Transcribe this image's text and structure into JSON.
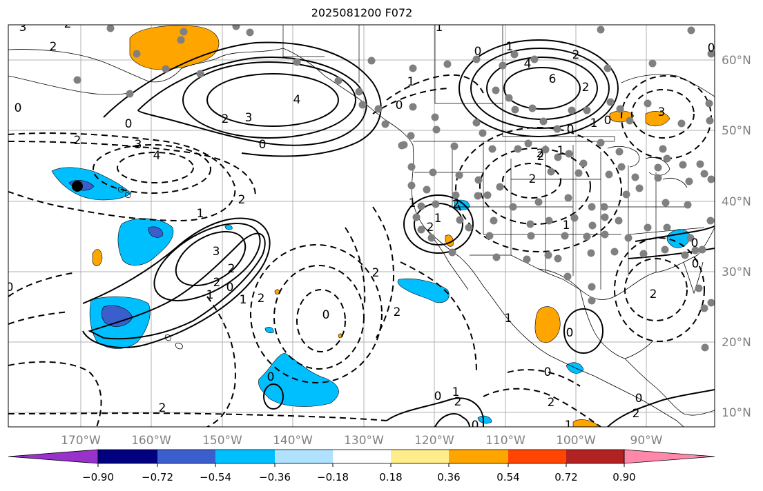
{
  "title": "2025081200 F072",
  "lon_ticks": [
    "170°W",
    "160°W",
    "150°W",
    "140°W",
    "130°W",
    "120°W",
    "110°W",
    "100°W",
    "90°W"
  ],
  "lat_ticks": [
    "60°N",
    "50°N",
    "40°N",
    "30°N",
    "20°N",
    "10°N"
  ],
  "colorbar": {
    "ticks": [
      "−0.90",
      "−0.72",
      "−0.54",
      "−0.36",
      "−0.18",
      "0.18",
      "0.36",
      "0.54",
      "0.72",
      "0.90"
    ],
    "colors": [
      "#9932cc",
      "#000080",
      "#3a5fcd",
      "#00bfff",
      "#b0e2ff",
      "#ffffff",
      "#ffec8b",
      "#ffa500",
      "#ff4500",
      "#b22222",
      "#ff88aa"
    ]
  },
  "contour_labels": [
    {
      "text": "3"
    },
    {
      "text": "2"
    },
    {
      "text": "2"
    },
    {
      "text": "0"
    },
    {
      "text": "0"
    },
    {
      "text": "2"
    },
    {
      "text": "3"
    },
    {
      "text": "4"
    },
    {
      "text": "4"
    },
    {
      "text": "3"
    },
    {
      "text": "2"
    },
    {
      "text": "0"
    },
    {
      "text": "1"
    },
    {
      "text": "2"
    },
    {
      "text": "3"
    },
    {
      "text": "2"
    },
    {
      "text": "1"
    },
    {
      "text": "0"
    },
    {
      "text": "2"
    },
    {
      "text": "1"
    },
    {
      "text": "2"
    },
    {
      "text": "0"
    },
    {
      "text": "2"
    },
    {
      "text": "0"
    },
    {
      "text": "0"
    },
    {
      "text": "1"
    },
    {
      "text": "2"
    },
    {
      "text": "1"
    },
    {
      "text": "2"
    },
    {
      "text": "2"
    },
    {
      "text": "1"
    },
    {
      "text": "0"
    },
    {
      "text": "1"
    },
    {
      "text": "0"
    },
    {
      "text": "2"
    },
    {
      "text": "1"
    },
    {
      "text": "0"
    },
    {
      "text": "1"
    },
    {
      "text": "2"
    },
    {
      "text": "4"
    },
    {
      "text": "6"
    },
    {
      "text": "2"
    },
    {
      "text": "0"
    },
    {
      "text": "3"
    },
    {
      "text": "1"
    },
    {
      "text": "2"
    },
    {
      "text": "2"
    },
    {
      "text": "0"
    },
    {
      "text": "0"
    },
    {
      "text": "2"
    },
    {
      "text": "1"
    },
    {
      "text": "0"
    },
    {
      "text": "1"
    },
    {
      "text": "0"
    },
    {
      "text": "2"
    },
    {
      "text": "1"
    },
    {
      "text": "0"
    },
    {
      "text": "2"
    },
    {
      "text": "0"
    },
    {
      "text": "2"
    },
    {
      "text": "1"
    },
    {
      "text": "0"
    },
    {
      "text": "2"
    },
    {
      "text": "0"
    }
  ]
}
